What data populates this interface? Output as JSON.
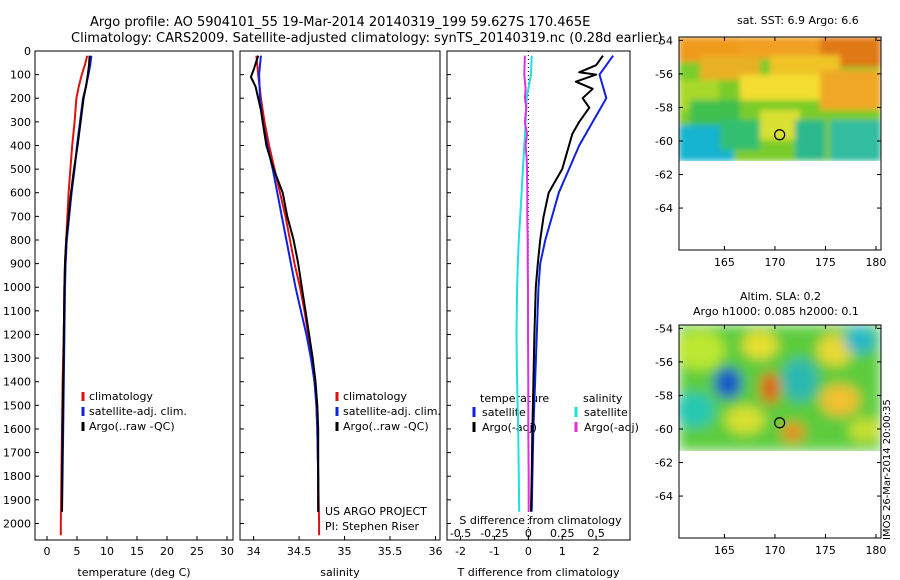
{
  "header": {
    "line1": "Argo profile: AO 5904101_55 19-Mar-2014 20140319_199 59.627S 170.465E",
    "line2": "Climatology: CARS2009. Satellite-adjusted climatology: synTS_20140319.nc (0.28d earlier)"
  },
  "side_stamp": "IMOS 26-Mar-2014 20:00:35",
  "colors": {
    "climatology": "#e01010",
    "satellite": "#1020e0",
    "argo": "#000000",
    "sal_satellite": "#20e0e0",
    "sal_argo": "#e030e0"
  },
  "chart_data": [
    {
      "type": "line",
      "panel": "temperature",
      "xlabel": "temperature (deg C)",
      "xlim": [
        -2,
        31
      ],
      "xticks": [
        0,
        5,
        10,
        15,
        20,
        25,
        30
      ],
      "ylim": [
        2070,
        0
      ],
      "yticks": [
        0,
        100,
        200,
        300,
        400,
        500,
        600,
        700,
        800,
        900,
        1000,
        1100,
        1200,
        1300,
        1400,
        1500,
        1600,
        1700,
        1800,
        1900,
        2000
      ],
      "legend": [
        "climatology",
        "satellite-adj. clim.",
        "Argo(..raw -QC)"
      ],
      "series": [
        {
          "name": "climatology",
          "color": "#e01010",
          "points": [
            [
              6.7,
              20
            ],
            [
              6.3,
              60
            ],
            [
              5.8,
              100
            ],
            [
              5.3,
              150
            ],
            [
              4.9,
              200
            ],
            [
              4.6,
              300
            ],
            [
              4.2,
              400
            ],
            [
              3.9,
              500
            ],
            [
              3.6,
              600
            ],
            [
              3.4,
              700
            ],
            [
              3.2,
              800
            ],
            [
              3.0,
              900
            ],
            [
              2.9,
              1000
            ],
            [
              2.8,
              1200
            ],
            [
              2.6,
              1400
            ],
            [
              2.5,
              1600
            ],
            [
              2.4,
              1800
            ],
            [
              2.3,
              2000
            ],
            [
              2.3,
              2050
            ]
          ]
        },
        {
          "name": "satellite-adj. clim.",
          "color": "#1020e0",
          "points": [
            [
              7.4,
              20
            ],
            [
              7.2,
              60
            ],
            [
              6.9,
              100
            ],
            [
              6.5,
              150
            ],
            [
              6.0,
              200
            ],
            [
              5.5,
              300
            ],
            [
              5.0,
              400
            ],
            [
              4.6,
              500
            ],
            [
              4.1,
              600
            ],
            [
              3.7,
              700
            ],
            [
              3.3,
              800
            ],
            [
              3.1,
              900
            ],
            [
              3.0,
              1000
            ],
            [
              2.9,
              1200
            ],
            [
              2.8,
              1400
            ],
            [
              2.7,
              1600
            ],
            [
              2.6,
              1800
            ],
            [
              2.5,
              1950
            ]
          ]
        },
        {
          "name": "Argo(..raw -QC)",
          "color": "#000000",
          "points": [
            [
              7.1,
              20
            ],
            [
              7.0,
              60
            ],
            [
              6.8,
              100
            ],
            [
              6.5,
              150
            ],
            [
              6.1,
              200
            ],
            [
              5.6,
              300
            ],
            [
              5.1,
              400
            ],
            [
              4.5,
              500
            ],
            [
              4.0,
              600
            ],
            [
              3.6,
              700
            ],
            [
              3.2,
              800
            ],
            [
              3.0,
              900
            ],
            [
              2.9,
              1000
            ],
            [
              2.8,
              1200
            ],
            [
              2.7,
              1400
            ],
            [
              2.6,
              1600
            ],
            [
              2.5,
              1800
            ],
            [
              2.5,
              1950
            ]
          ]
        }
      ]
    },
    {
      "type": "line",
      "panel": "salinity",
      "xlabel": "salinity",
      "xlim": [
        33.85,
        36.05
      ],
      "xticks": [
        34,
        34.5,
        35,
        35.5,
        36
      ],
      "xticklabels": [
        "34",
        "34.5",
        "35",
        "35.5",
        "36"
      ],
      "ylim": [
        2070,
        0
      ],
      "legend": [
        "climatology",
        "satellite-adj. clim.",
        "Argo(..raw -QC)"
      ],
      "annotation": [
        "US ARGO PROJECT",
        "PI: Stephen Riser"
      ],
      "series": [
        {
          "name": "climatology",
          "color": "#e01010",
          "points": [
            [
              34.03,
              20
            ],
            [
              34.05,
              100
            ],
            [
              34.08,
              200
            ],
            [
              34.12,
              300
            ],
            [
              34.17,
              400
            ],
            [
              34.23,
              500
            ],
            [
              34.29,
              600
            ],
            [
              34.35,
              700
            ],
            [
              34.4,
              800
            ],
            [
              34.45,
              900
            ],
            [
              34.51,
              1000
            ],
            [
              34.56,
              1100
            ],
            [
              34.6,
              1200
            ],
            [
              34.64,
              1300
            ],
            [
              34.67,
              1400
            ],
            [
              34.69,
              1500
            ],
            [
              34.7,
              1600
            ],
            [
              34.71,
              1800
            ],
            [
              34.72,
              2000
            ],
            [
              34.72,
              2050
            ]
          ]
        },
        {
          "name": "satellite-adj. clim.",
          "color": "#1020e0",
          "points": [
            [
              34.08,
              20
            ],
            [
              34.07,
              60
            ],
            [
              34.06,
              100
            ],
            [
              34.07,
              200
            ],
            [
              34.1,
              300
            ],
            [
              34.15,
              400
            ],
            [
              34.21,
              500
            ],
            [
              34.26,
              600
            ],
            [
              34.31,
              700
            ],
            [
              34.36,
              800
            ],
            [
              34.41,
              900
            ],
            [
              34.46,
              1000
            ],
            [
              34.52,
              1100
            ],
            [
              34.58,
              1200
            ],
            [
              34.63,
              1300
            ],
            [
              34.67,
              1400
            ],
            [
              34.69,
              1500
            ],
            [
              34.7,
              1600
            ],
            [
              34.71,
              1800
            ],
            [
              34.71,
              1950
            ]
          ]
        },
        {
          "name": "Argo(..raw -QC)",
          "color": "#000000",
          "points": [
            [
              34.05,
              20
            ],
            [
              34.0,
              80
            ],
            [
              33.97,
              110
            ],
            [
              34.02,
              150
            ],
            [
              34.05,
              200
            ],
            [
              34.08,
              250
            ],
            [
              34.1,
              300
            ],
            [
              34.12,
              350
            ],
            [
              34.14,
              400
            ],
            [
              34.18,
              450
            ],
            [
              34.22,
              500
            ],
            [
              34.27,
              550
            ],
            [
              34.32,
              600
            ],
            [
              34.37,
              700
            ],
            [
              34.44,
              800
            ],
            [
              34.49,
              900
            ],
            [
              34.53,
              1000
            ],
            [
              34.57,
              1100
            ],
            [
              34.61,
              1200
            ],
            [
              34.65,
              1300
            ],
            [
              34.68,
              1400
            ],
            [
              34.7,
              1500
            ],
            [
              34.71,
              1600
            ],
            [
              34.71,
              1800
            ],
            [
              34.71,
              1950
            ]
          ]
        }
      ]
    },
    {
      "type": "line",
      "panel": "difference",
      "xlabel": "T difference from climatology",
      "xlim": [
        -2.4,
        3.0
      ],
      "xticks": [
        -2,
        -1,
        0,
        1,
        2
      ],
      "top_axis_label": "S difference from climatology",
      "top_ticks": [
        -0.5,
        -0.25,
        0,
        0.25,
        0.5
      ],
      "top_ticklabels": [
        "-0.5",
        "-0.25",
        "0",
        "0.25",
        "0.5"
      ],
      "ylim": [
        2070,
        0
      ],
      "legend_temperature": {
        "title": "temperature",
        "items": [
          "satellite",
          "Argo(-adj)"
        ]
      },
      "legend_salinity": {
        "title": "salinity",
        "items": [
          "satellite",
          "Argo(-adj)"
        ]
      },
      "series": [
        {
          "name": "temperature satellite",
          "color": "#1020e0",
          "points": [
            [
              2.5,
              20
            ],
            [
              2.3,
              60
            ],
            [
              2.1,
              100
            ],
            [
              2.3,
              200
            ],
            [
              1.9,
              300
            ],
            [
              1.5,
              400
            ],
            [
              1.2,
              500
            ],
            [
              0.9,
              600
            ],
            [
              0.7,
              700
            ],
            [
              0.5,
              800
            ],
            [
              0.35,
              900
            ],
            [
              0.3,
              1000
            ],
            [
              0.25,
              1200
            ],
            [
              0.2,
              1400
            ],
            [
              0.15,
              1600
            ],
            [
              0.12,
              1800
            ],
            [
              0.1,
              1950
            ]
          ]
        },
        {
          "name": "temperature Argo(-adj)",
          "color": "#000000",
          "points": [
            [
              2.2,
              20
            ],
            [
              2.0,
              60
            ],
            [
              1.5,
              90
            ],
            [
              2.0,
              100
            ],
            [
              1.4,
              130
            ],
            [
              1.9,
              160
            ],
            [
              1.6,
              200
            ],
            [
              1.8,
              240
            ],
            [
              1.5,
              300
            ],
            [
              1.3,
              350
            ],
            [
              1.2,
              400
            ],
            [
              1.1,
              450
            ],
            [
              1.0,
              500
            ],
            [
              0.8,
              550
            ],
            [
              0.6,
              600
            ],
            [
              0.45,
              700
            ],
            [
              0.35,
              800
            ],
            [
              0.28,
              900
            ],
            [
              0.22,
              1000
            ],
            [
              0.18,
              1200
            ],
            [
              0.15,
              1400
            ],
            [
              0.12,
              1600
            ],
            [
              0.1,
              1800
            ],
            [
              0.08,
              1950
            ]
          ]
        },
        {
          "name": "salinity satellite",
          "color": "#20e0e0",
          "points": [
            [
              0.1,
              20
            ],
            [
              0.08,
              100
            ],
            [
              -0.05,
              200
            ],
            [
              -0.08,
              300
            ],
            [
              -0.12,
              400
            ],
            [
              -0.16,
              500
            ],
            [
              -0.2,
              600
            ],
            [
              -0.24,
              700
            ],
            [
              -0.28,
              800
            ],
            [
              -0.31,
              900
            ],
            [
              -0.33,
              1000
            ],
            [
              -0.34,
              1100
            ],
            [
              -0.35,
              1200
            ],
            [
              -0.33,
              1400
            ],
            [
              -0.3,
              1600
            ],
            [
              -0.28,
              1800
            ],
            [
              -0.27,
              1950
            ]
          ]
        },
        {
          "name": "salinity Argo(-adj)",
          "color": "#e030e0",
          "points": [
            [
              -0.1,
              20
            ],
            [
              -0.12,
              100
            ],
            [
              -0.08,
              160
            ],
            [
              -0.1,
              200
            ],
            [
              -0.06,
              240
            ],
            [
              -0.1,
              300
            ],
            [
              -0.04,
              350
            ],
            [
              -0.08,
              400
            ],
            [
              -0.05,
              450
            ],
            [
              -0.04,
              500
            ],
            [
              -0.03,
              600
            ],
            [
              -0.03,
              700
            ],
            [
              -0.02,
              800
            ],
            [
              -0.02,
              900
            ],
            [
              -0.01,
              1000
            ],
            [
              -0.01,
              1200
            ],
            [
              0.0,
              1400
            ],
            [
              0.0,
              1600
            ],
            [
              0.01,
              1800
            ],
            [
              0.01,
              1950
            ]
          ]
        }
      ]
    },
    {
      "type": "heatmap",
      "panel": "sst_map",
      "title": "sat. SST: 6.9 Argo: 6.6",
      "xlim": [
        160.5,
        180.5
      ],
      "ylim": [
        -66.5,
        -53.8
      ],
      "xticks": [
        165,
        170,
        175,
        180
      ],
      "yticks": [
        -54,
        -56,
        -58,
        -60,
        -62,
        -64
      ],
      "data_extent_lat": [
        -53.8,
        -60.2
      ],
      "profile_marker": {
        "lon": 170.465,
        "lat": -59.627
      }
    },
    {
      "type": "heatmap",
      "panel": "sla_map",
      "title_lines": [
        "Altim. SLA: 0.2",
        "Argo h1000: 0.085 h2000: 0.1"
      ],
      "xlim": [
        160.5,
        180.5
      ],
      "ylim": [
        -66.5,
        -53.8
      ],
      "xticks": [
        165,
        170,
        175,
        180
      ],
      "yticks": [
        -54,
        -56,
        -58,
        -60,
        -62,
        -64
      ],
      "data_extent_lat": [
        -53.8,
        -60.2
      ],
      "profile_marker": {
        "lon": 170.465,
        "lat": -59.627
      }
    }
  ]
}
